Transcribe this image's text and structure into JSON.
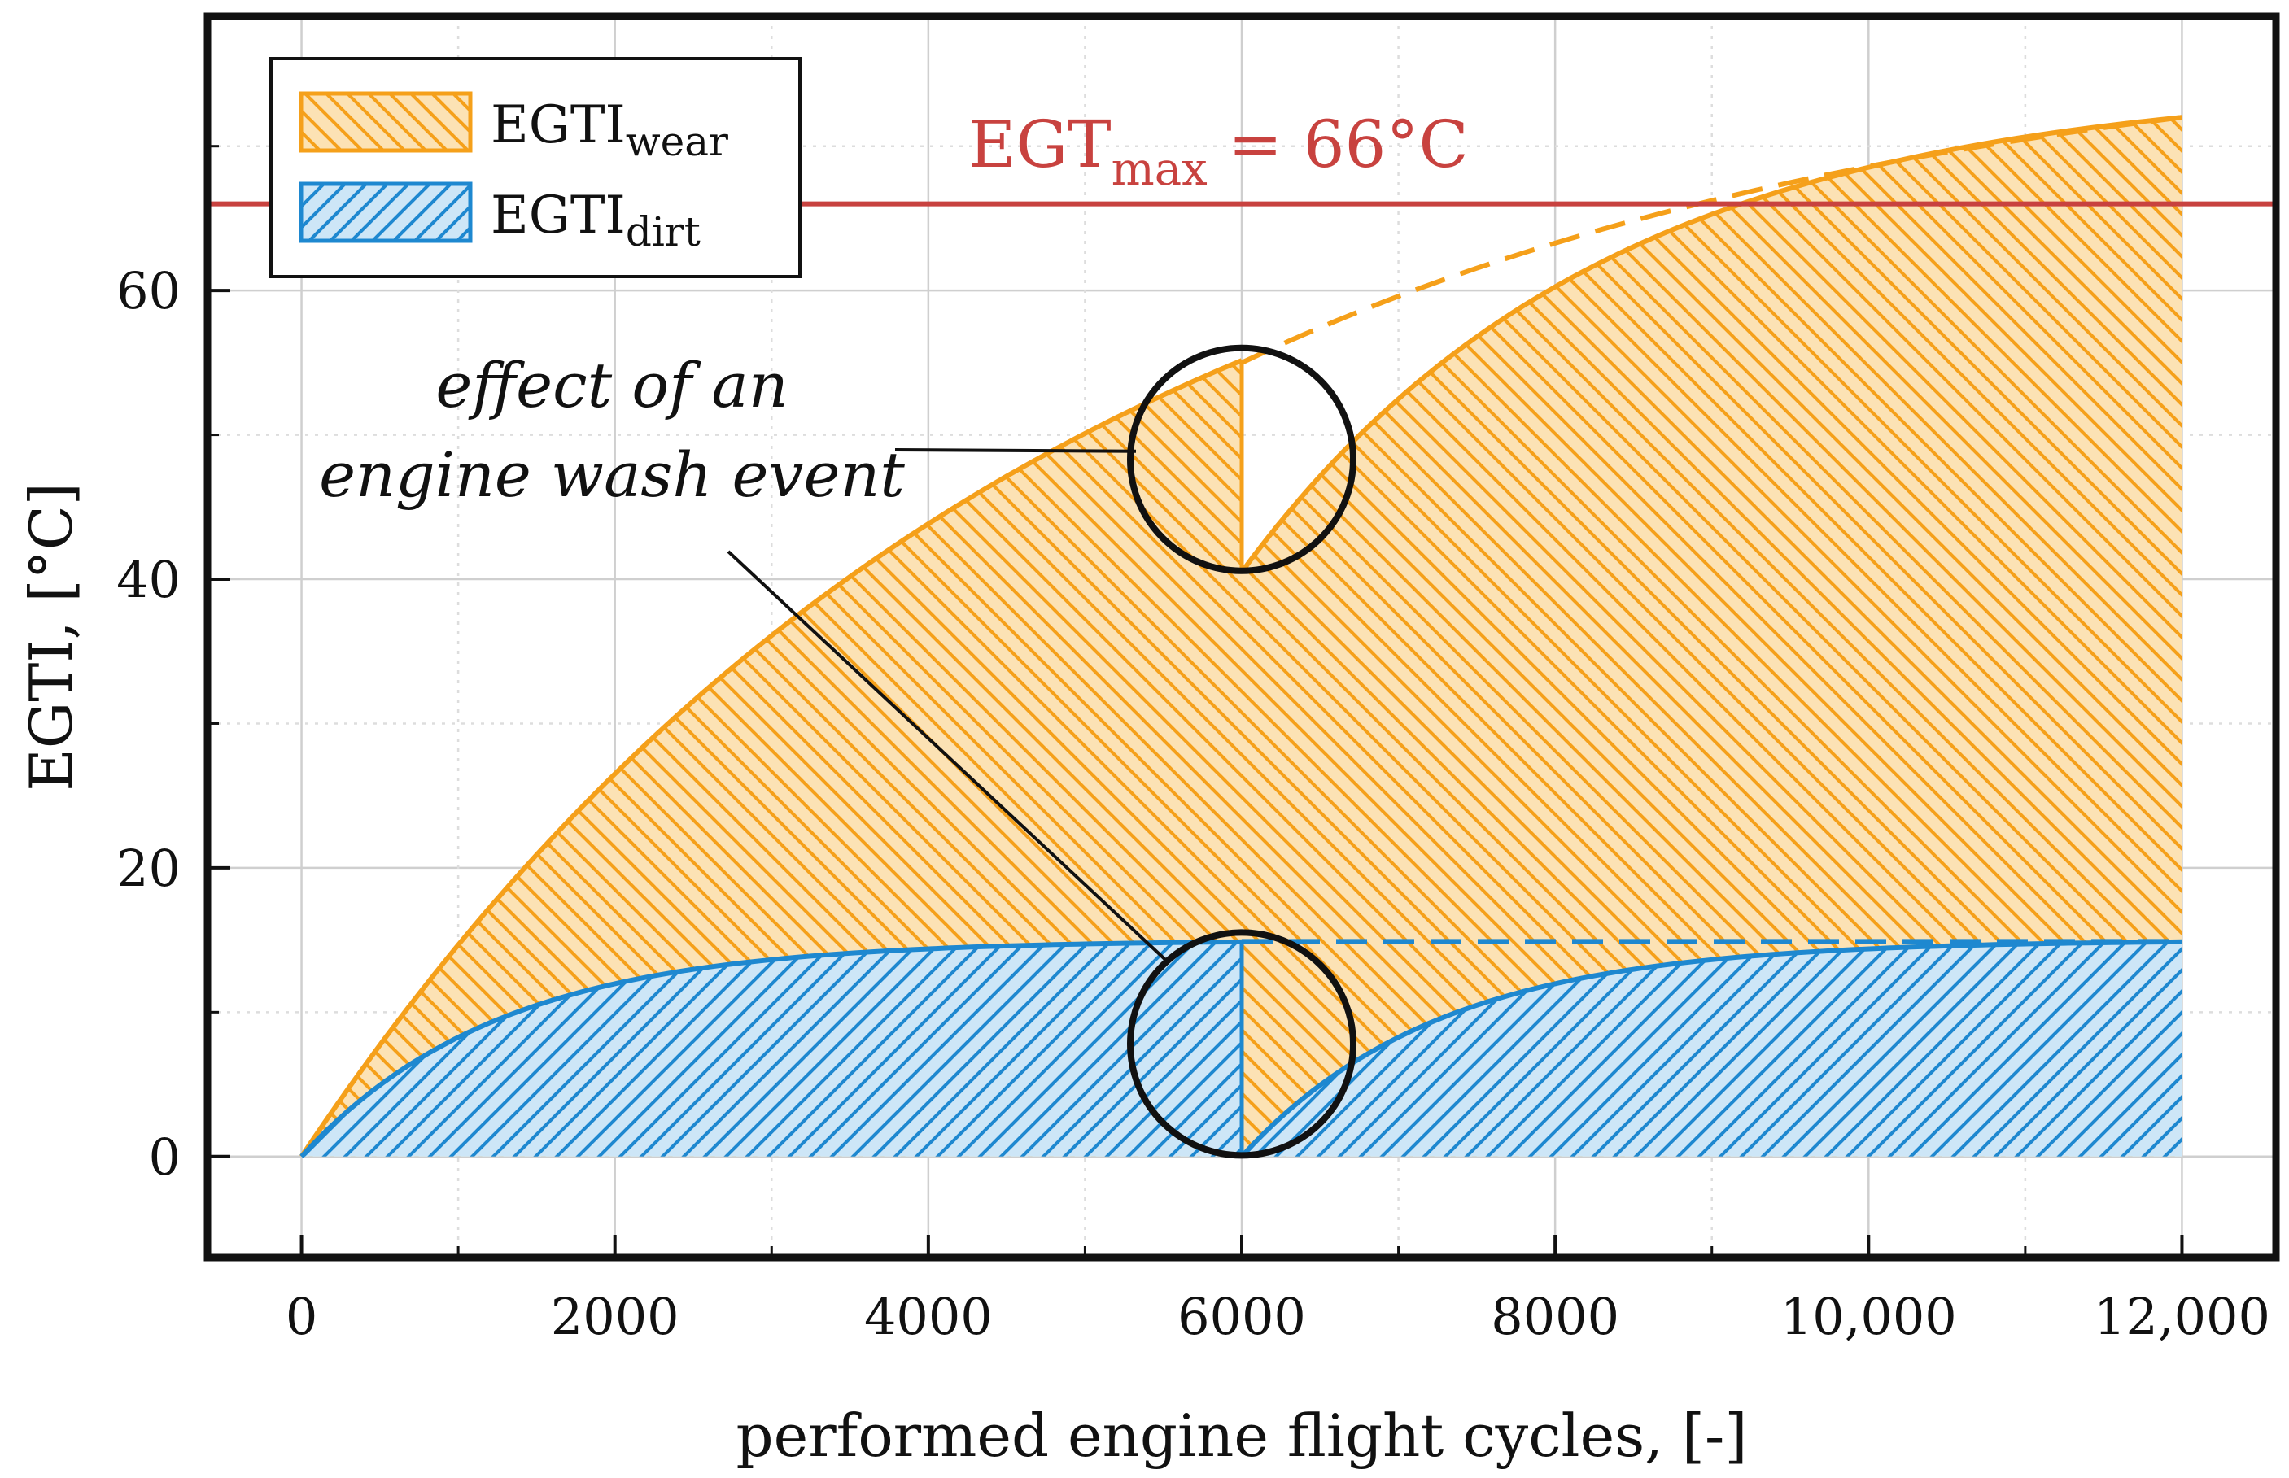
{
  "chart_data": {
    "type": "area",
    "title": "",
    "xlabel": "performed engine flight cycles, [-]",
    "ylabel": "EGTI, [°C]",
    "xlim": [
      -600,
      12600
    ],
    "ylim": [
      -7,
      79
    ],
    "x_ticks": [
      0,
      2000,
      4000,
      6000,
      8000,
      10000,
      12000
    ],
    "x_tick_labels": [
      "0",
      "2000",
      "4000",
      "6000",
      "8000",
      "10,000",
      "12,000"
    ],
    "y_ticks": [
      0,
      20,
      40,
      60
    ],
    "y_tick_labels": [
      "0",
      "20",
      "40",
      "60"
    ],
    "grid": true,
    "series": [
      {
        "name": "EGTI_wear (total, with engine wash at 6000)",
        "x": [
          0,
          1000,
          2000,
          3000,
          4000,
          5000,
          6000,
          6000,
          7000,
          8000,
          9000,
          10000,
          11000,
          12000
        ],
        "values": [
          0,
          14.3,
          26.3,
          36.2,
          43.8,
          50.0,
          55.0,
          40.5,
          52.7,
          60.2,
          65.0,
          68.5,
          70.6,
          72.0
        ]
      },
      {
        "name": "EGTI_wear (total, without wash, dashed)",
        "x": [
          6000,
          7000,
          8000,
          9000,
          10000,
          11000,
          12000
        ],
        "values": [
          55.0,
          59.0,
          62.5,
          65.6,
          68.3,
          70.3,
          72.0
        ]
      },
      {
        "name": "EGTI_dirt (with engine wash at 6000)",
        "x": [
          0,
          1000,
          2000,
          3000,
          4000,
          5000,
          6000,
          6000,
          7000,
          8000,
          9000,
          10000,
          11000,
          12000
        ],
        "values": [
          0,
          8.5,
          11.7,
          13.4,
          14.2,
          14.6,
          14.9,
          0,
          8.5,
          11.7,
          13.4,
          14.2,
          14.6,
          14.9
        ]
      },
      {
        "name": "EGTI_dirt (without wash, dashed)",
        "x": [
          6000,
          12000
        ],
        "values": [
          14.9,
          14.9
        ]
      }
    ],
    "reference_line": {
      "y": 66,
      "label_main": "EGT",
      "label_sub": "max",
      "label_rest": " = 66°C",
      "color": "#c8423f"
    },
    "legend": {
      "placement": "top-left",
      "entries": [
        {
          "main": "EGTI",
          "sub": "wear",
          "color": "#f5a01a"
        },
        {
          "main": "EGTI",
          "sub": "dirt",
          "color": "#1e88d0"
        }
      ]
    },
    "annotation": {
      "line1": "effect of an",
      "line2": "engine wash event",
      "targets": [
        {
          "x": 6000,
          "y": 48.3
        },
        {
          "x": 6000,
          "y": 7.8
        }
      ]
    }
  },
  "colors": {
    "wear": "#f5a01a",
    "dirt": "#1e88d0",
    "egt_max": "#c8423f",
    "frame": "#111111",
    "grid": "#cccccc"
  }
}
